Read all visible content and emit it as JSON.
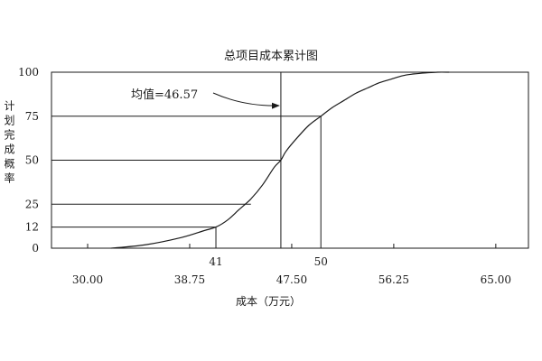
{
  "chart_data": {
    "type": "line",
    "title": "总项目成本累计图",
    "xlabel": "成本（万元）",
    "ylabel": "计划完成概率",
    "x_ticks": [
      "30.00",
      "38.75",
      "47.50",
      "56.25",
      "65.00"
    ],
    "x_tick_values": [
      30.0,
      38.75,
      47.5,
      56.25,
      65.0
    ],
    "y_ticks": [
      "0",
      "12",
      "25",
      "50",
      "75",
      "100"
    ],
    "y_tick_values": [
      0,
      12,
      25,
      50,
      75,
      100
    ],
    "xlim": [
      26.9,
      67.8
    ],
    "ylim": [
      0,
      100
    ],
    "grid": false,
    "series": [
      {
        "x": [
          32.0,
          35.0,
          38.0,
          40.0,
          41.0,
          42.0,
          43.0,
          44.0,
          45.0,
          46.0,
          46.57,
          47.0,
          48.0,
          49.0,
          50.0,
          51.0,
          52.0,
          53.0,
          54.0,
          55.0,
          56.0,
          57.0,
          58.0,
          59.0,
          60.0,
          61.0
        ],
        "y": [
          0,
          2,
          6,
          10,
          12,
          16,
          22,
          28,
          36,
          46,
          50,
          55,
          63,
          70,
          75,
          80,
          84,
          88,
          91,
          94,
          96,
          98,
          99,
          99.6,
          100,
          100
        ]
      }
    ],
    "reference_lines": [
      {
        "orientation": "horizontal",
        "y": 75,
        "x_to": 50
      },
      {
        "orientation": "horizontal",
        "y": 50,
        "x_to": 46.57
      },
      {
        "orientation": "horizontal",
        "y": 25,
        "x_to": 44
      },
      {
        "orientation": "horizontal",
        "y": 12,
        "x_to": 41
      },
      {
        "orientation": "vertical",
        "x": 46.57,
        "y_to": 100
      },
      {
        "orientation": "vertical",
        "x": 41,
        "y_to": 12,
        "label": "41"
      },
      {
        "orientation": "vertical",
        "x": 50,
        "y_to": 75,
        "label": "50"
      }
    ],
    "annotations": [
      {
        "text": "均值=46.57",
        "x": 46.57,
        "y": 88
      }
    ]
  }
}
